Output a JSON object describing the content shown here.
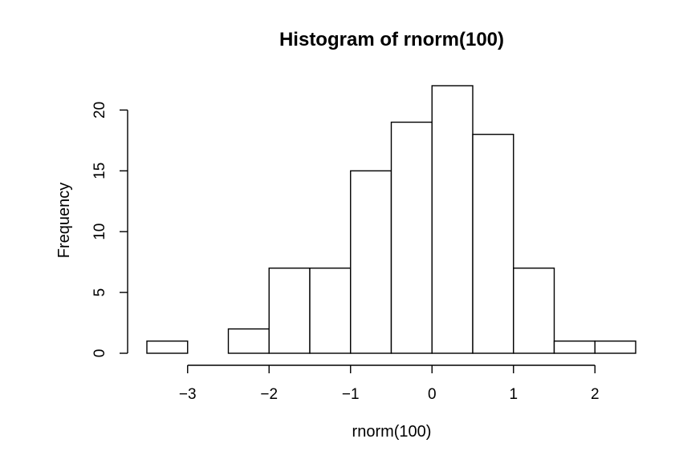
{
  "chart_data": {
    "type": "bar",
    "title": "Histogram of rnorm(100)",
    "xlabel": "rnorm(100)",
    "ylabel": "Frequency",
    "bin_edges": [
      -3.5,
      -3.0,
      -2.5,
      -2.0,
      -1.5,
      -1.0,
      -0.5,
      0.0,
      0.5,
      1.0,
      1.5,
      2.0,
      2.5
    ],
    "values": [
      1,
      0,
      2,
      7,
      7,
      15,
      19,
      22,
      18,
      7,
      1,
      1
    ],
    "xlim": [
      -3.5,
      2.5
    ],
    "ylim": [
      0,
      22
    ],
    "x_ticks": [
      -3,
      -2,
      -1,
      0,
      1,
      2
    ],
    "x_tick_labels": [
      "−3",
      "−2",
      "−1",
      "0",
      "1",
      "2"
    ],
    "y_ticks": [
      0,
      5,
      10,
      15,
      20
    ],
    "y_tick_labels": [
      "0",
      "5",
      "10",
      "15",
      "20"
    ],
    "grid": false,
    "legend": "none",
    "colors": {
      "bar_fill": "#ffffff",
      "bar_stroke": "#000000"
    }
  }
}
